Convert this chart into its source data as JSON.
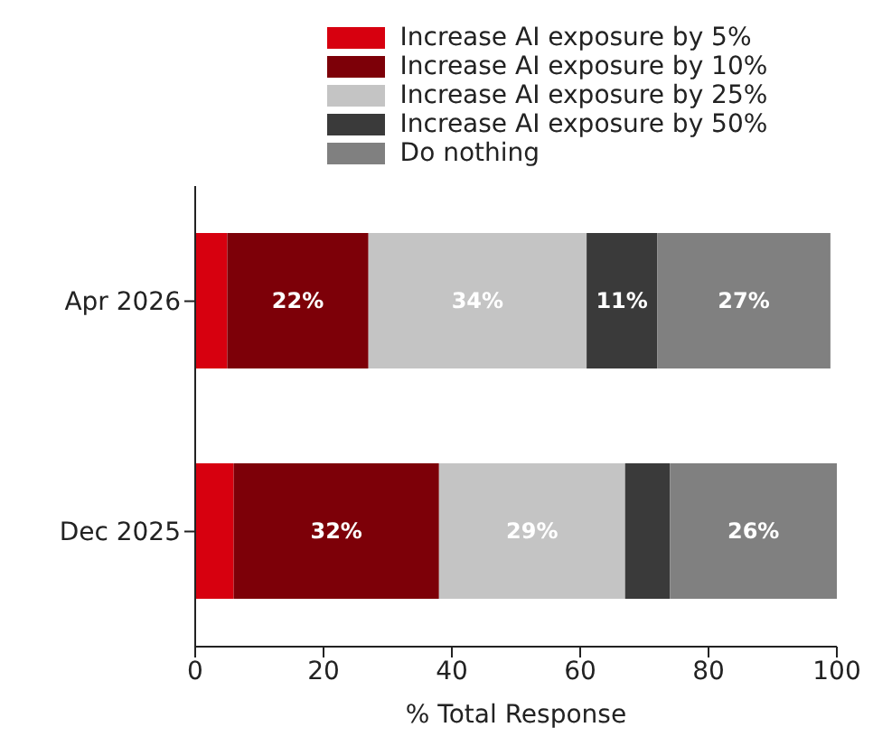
{
  "chart_data": {
    "type": "bar",
    "orientation": "horizontal",
    "stacked": true,
    "categories": [
      "Apr 2026",
      "Dec 2025"
    ],
    "xlabel": "% Total Response",
    "xlim": [
      0,
      100
    ],
    "xticks": [
      0,
      20,
      40,
      60,
      80,
      100
    ],
    "legend": "top",
    "series": [
      {
        "name": "Increase AI exposure by 5%",
        "color": "#d7000f",
        "values": [
          5,
          6
        ],
        "value_labels": [
          null,
          null
        ]
      },
      {
        "name": "Increase AI exposure by 10%",
        "color": "#7d0008",
        "values": [
          22,
          32
        ],
        "value_labels": [
          "22%",
          "32%"
        ]
      },
      {
        "name": "Increase AI exposure by 25%",
        "color": "#c4c4c4",
        "values": [
          34,
          29
        ],
        "value_labels": [
          "34%",
          "29%"
        ]
      },
      {
        "name": "Increase AI exposure by 50%",
        "color": "#3a3a3a",
        "values": [
          11,
          7
        ],
        "value_labels": [
          "11%",
          null
        ]
      },
      {
        "name": "Do nothing",
        "color": "#808080",
        "values": [
          27,
          26
        ],
        "value_labels": [
          "27%",
          "26%"
        ]
      }
    ]
  }
}
